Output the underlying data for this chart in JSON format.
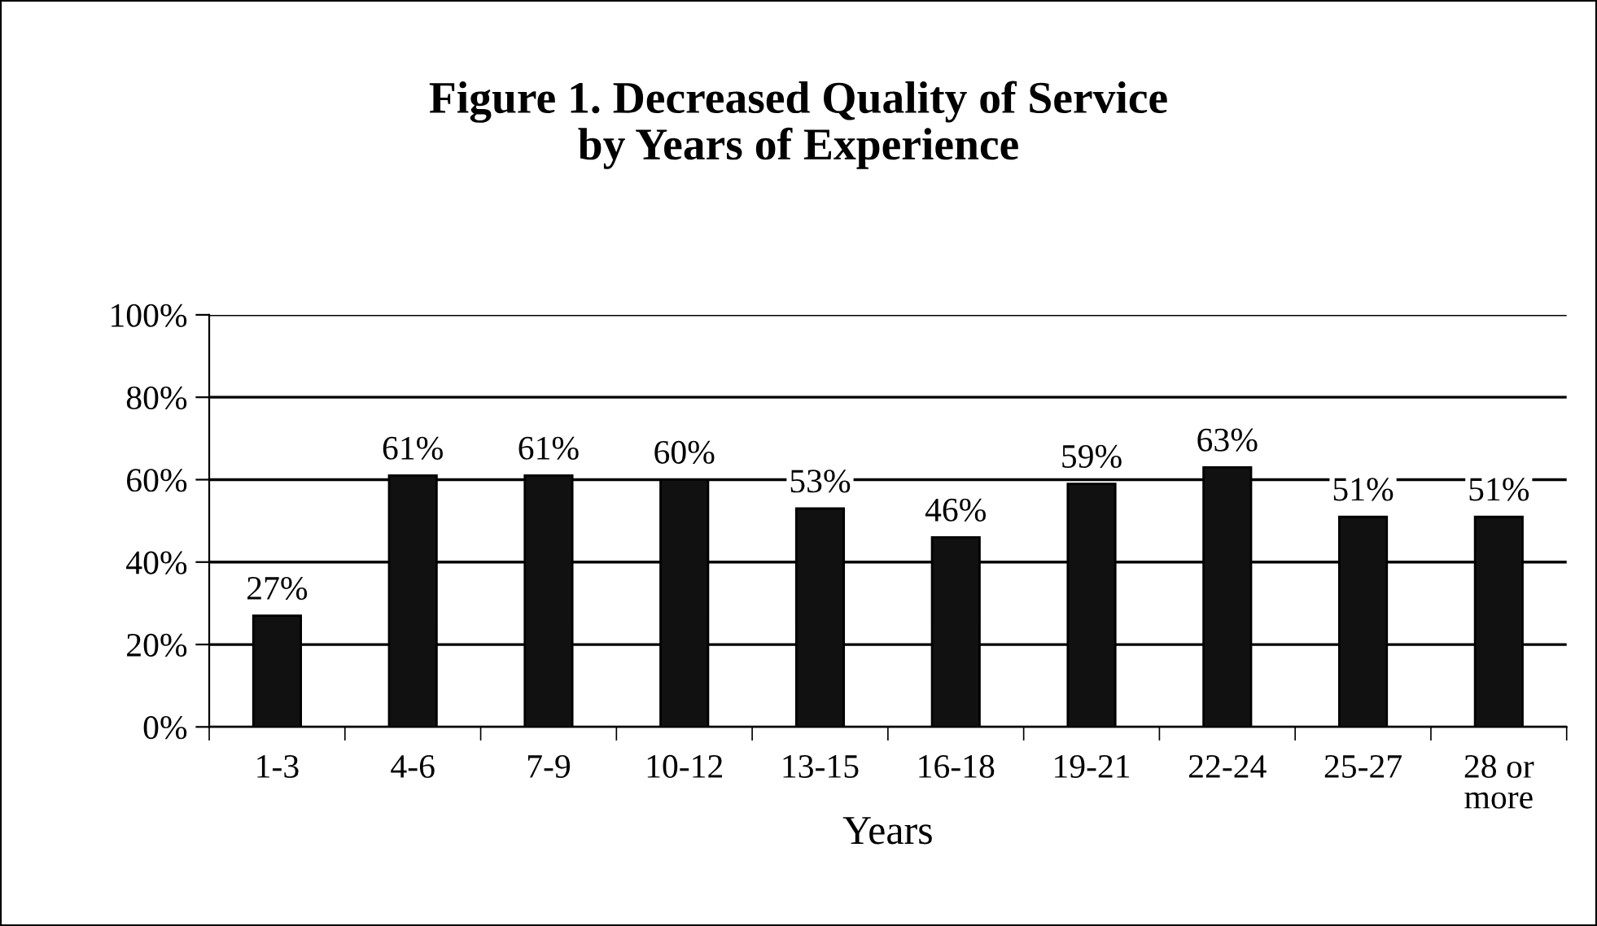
{
  "chart_data": {
    "type": "bar",
    "title": "Figure 1. Decreased Quality of Service\nby Years of Experience",
    "xlabel": "Years",
    "categories": [
      "1-3",
      "4-6",
      "7-9",
      "10-12",
      "13-15",
      "16-18",
      "19-21",
      "22-24",
      "25-27",
      "28 or\nmore"
    ],
    "values": [
      27,
      61,
      61,
      60,
      53,
      46,
      59,
      63,
      51,
      51
    ],
    "value_labels": [
      "27%",
      "61%",
      "61%",
      "60%",
      "53%",
      "46%",
      "59%",
      "63%",
      "51%",
      "51%"
    ],
    "color": "#111111",
    "ylim": [
      0,
      100
    ],
    "yticks": [
      {
        "value": 0,
        "label": "0%"
      },
      {
        "value": 20,
        "label": "20%"
      },
      {
        "value": 40,
        "label": "40%"
      },
      {
        "value": 60,
        "label": "60%"
      },
      {
        "value": 80,
        "label": "80%"
      },
      {
        "value": 100,
        "label": "100%"
      }
    ],
    "grid": "y"
  }
}
